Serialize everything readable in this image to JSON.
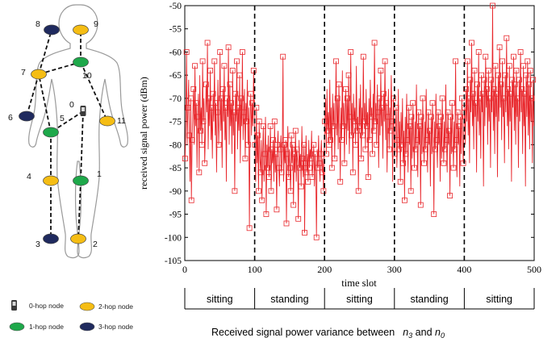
{
  "legend": {
    "hop0": "0-hop node",
    "hop1": "1-hop node",
    "hop2": "2-hop node",
    "hop3": "3-hop node"
  },
  "node_colors": {
    "hop0": "#3a3a3a",
    "hop1": "#1ea84a",
    "hop2": "#f5bd14",
    "hop3": "#1f2a5e"
  },
  "body_nodes": [
    {
      "id": "0",
      "hop": "hop0"
    },
    {
      "id": "1",
      "hop": "hop1"
    },
    {
      "id": "2",
      "hop": "hop2"
    },
    {
      "id": "3",
      "hop": "hop3"
    },
    {
      "id": "4",
      "hop": "hop2"
    },
    {
      "id": "5",
      "hop": "hop1"
    },
    {
      "id": "6",
      "hop": "hop3"
    },
    {
      "id": "7",
      "hop": "hop2"
    },
    {
      "id": "8",
      "hop": "hop3"
    },
    {
      "id": "9",
      "hop": "hop2"
    },
    {
      "id": "10",
      "hop": "hop1"
    },
    {
      "id": "11",
      "hop": "hop2"
    }
  ],
  "caption": {
    "prefix": "Received signal power variance between",
    "sym1": "n",
    "sub1": "3",
    "mid": " and ",
    "sym2": "n",
    "sub2": "0"
  },
  "chart_data": {
    "type": "line",
    "xlabel": "time slot",
    "ylabel": "received signal power (dBm)",
    "xlim": [
      0,
      500
    ],
    "ylim": [
      -105,
      -50
    ],
    "xticks": [
      0,
      100,
      200,
      300,
      400,
      500
    ],
    "yticks": [
      -105,
      -100,
      -95,
      -90,
      -85,
      -80,
      -75,
      -70,
      -65,
      -60,
      -55,
      -50
    ],
    "marker": "square",
    "color": "#e8262b",
    "phase_boundaries": [
      100,
      200,
      300,
      400
    ],
    "phases": [
      {
        "label": "sitting",
        "start": 0,
        "end": 100
      },
      {
        "label": "standing",
        "start": 100,
        "end": 200
      },
      {
        "label": "sitting",
        "start": 200,
        "end": 300
      },
      {
        "label": "standing",
        "start": 300,
        "end": 400
      },
      {
        "label": "sitting",
        "start": 400,
        "end": 500
      }
    ],
    "series": [
      {
        "values": [
          -83,
          -75,
          -60,
          -80,
          -72,
          -66,
          -78,
          -88,
          -70,
          -92,
          -79,
          -73,
          -68,
          -80,
          -63,
          -76,
          -71,
          -85,
          -74,
          -69,
          -86,
          -65,
          -77,
          -72,
          -80,
          -62,
          -75,
          -70,
          -84,
          -78,
          -67,
          -73,
          -58,
          -81,
          -70,
          -76,
          -64,
          -79,
          -72,
          -83,
          -69,
          -75,
          -62,
          -78,
          -71,
          -86,
          -73,
          -66,
          -80,
          -74,
          -60,
          -77,
          -70,
          -85,
          -68,
          -75,
          -63,
          -79,
          -72,
          -88,
          -70,
          -74,
          -59,
          -80,
          -67,
          -76,
          -71,
          -82,
          -64,
          -78,
          -73,
          -90,
          -69,
          -75,
          -62,
          -81,
          -72,
          -77,
          -65,
          -84,
          -70,
          -76,
          -60,
          -79,
          -73,
          -68,
          -83,
          -71,
          -75,
          -66,
          -80,
          -72,
          -98,
          -74,
          -69,
          -78,
          -71,
          -76,
          -64,
          -73,
          -80,
          -88,
          -72,
          -84,
          -78,
          -90,
          -75,
          -83,
          -86,
          -79,
          -92,
          -81,
          -76,
          -88,
          -82,
          -74,
          -95,
          -80,
          -85,
          -78,
          -87,
          -83,
          -76,
          -90,
          -81,
          -84,
          -79,
          -88,
          -75,
          -86,
          -82,
          -94,
          -80,
          -77,
          -85,
          -89,
          -81,
          -78,
          -86,
          -83,
          -61,
          -88,
          -80,
          -84,
          -79,
          -97,
          -82,
          -76,
          -87,
          -81,
          -85,
          -90,
          -78,
          -84,
          -80,
          -93,
          -82,
          -86,
          -77,
          -88,
          -81,
          -84,
          -96,
          -79,
          -85,
          -82,
          -89,
          -76,
          -83,
          -87,
          -80,
          -99,
          -84,
          -78,
          -86,
          -82,
          -88,
          -79,
          -85,
          -81,
          -83,
          -77,
          -87,
          -84,
          -80,
          -89,
          -82,
          -86,
          -100,
          -81,
          -85,
          -78,
          -84,
          -88,
          -82,
          -79,
          -86,
          -83,
          -90,
          -81,
          -75,
          -70,
          -82,
          -68,
          -77,
          -73,
          -80,
          -66,
          -79,
          -72,
          -85,
          -69,
          -76,
          -71,
          -83,
          -74,
          -62,
          -78,
          -70,
          -81,
          -67,
          -75,
          -88,
          -72,
          -79,
          -64,
          -76,
          -71,
          -84,
          -73,
          -68,
          -80,
          -70,
          -77,
          -65,
          -82,
          -74,
          -60,
          -78,
          -71,
          -86,
          -69,
          -75,
          -72,
          -80,
          -63,
          -77,
          -74,
          -90,
          -70,
          -76,
          -67,
          -83,
          -72,
          -78,
          -61,
          -75,
          -71,
          -81,
          -68,
          -76,
          -73,
          -87,
          -70,
          -79,
          -66,
          -74,
          -72,
          -82,
          -69,
          -77,
          -58,
          -75,
          -71,
          -80,
          -67,
          -73,
          -85,
          -70,
          -78,
          -64,
          -76,
          -72,
          -83,
          -69,
          -75,
          -62,
          -79,
          -71,
          -86,
          -74,
          -68,
          -81,
          -72,
          -77,
          -65,
          -75,
          -88,
          -70,
          -78,
          -82,
          -77,
          -72,
          -85,
          -79,
          -68,
          -81,
          -75,
          -88,
          -73,
          -80,
          -70,
          -84,
          -77,
          -92,
          -74,
          -82,
          -69,
          -79,
          -86,
          -72,
          -80,
          -76,
          -90,
          -74,
          -83,
          -71,
          -78,
          -85,
          -75,
          -81,
          -67,
          -79,
          -87,
          -73,
          -80,
          -76,
          -93,
          -74,
          -82,
          -70,
          -78,
          -84,
          -75,
          -81,
          -68,
          -79,
          -86,
          -73,
          -80,
          -77,
          -89,
          -74,
          -82,
          -71,
          -78,
          -95,
          -75,
          -81,
          -69,
          -79,
          -85,
          -73,
          -80,
          -76,
          -88,
          -74,
          -83,
          -70,
          -78,
          -84,
          -75,
          -81,
          -67,
          -79,
          -86,
          -73,
          -80,
          -77,
          -91,
          -74,
          -82,
          -71,
          -78,
          -85,
          -75,
          -81,
          -62,
          -79,
          -87,
          -73,
          -80,
          -76,
          -89,
          -74,
          -82,
          -70,
          -78,
          -84,
          -75,
          -72,
          -80,
          -68,
          -75,
          -62,
          -78,
          -70,
          -84,
          -66,
          -73,
          -58,
          -76,
          -69,
          -81,
          -64,
          -74,
          -71,
          -86,
          -67,
          -75,
          -60,
          -78,
          -70,
          -83,
          -65,
          -73,
          -69,
          -89,
          -66,
          -76,
          -61,
          -72,
          -68,
          -80,
          -64,
          -75,
          -70,
          -85,
          -66,
          -73,
          -50,
          -77,
          -68,
          -82,
          -63,
          -74,
          -69,
          -87,
          -65,
          -75,
          -59,
          -72,
          -67,
          -79,
          -62,
          -74,
          -70,
          -84,
          -65,
          -73,
          -57,
          -76,
          -68,
          -81,
          -63,
          -75,
          -69,
          -88,
          -66,
          -72,
          -61,
          -77,
          -67,
          -80,
          -64,
          -74,
          -70,
          -85,
          -66,
          -75,
          -60,
          -73,
          -68,
          -82,
          -63,
          -76,
          -69,
          -89,
          -65,
          -74,
          -62,
          -78,
          -67,
          -81,
          -64,
          -75,
          -70,
          -84,
          -66,
          -76
        ]
      }
    ]
  }
}
